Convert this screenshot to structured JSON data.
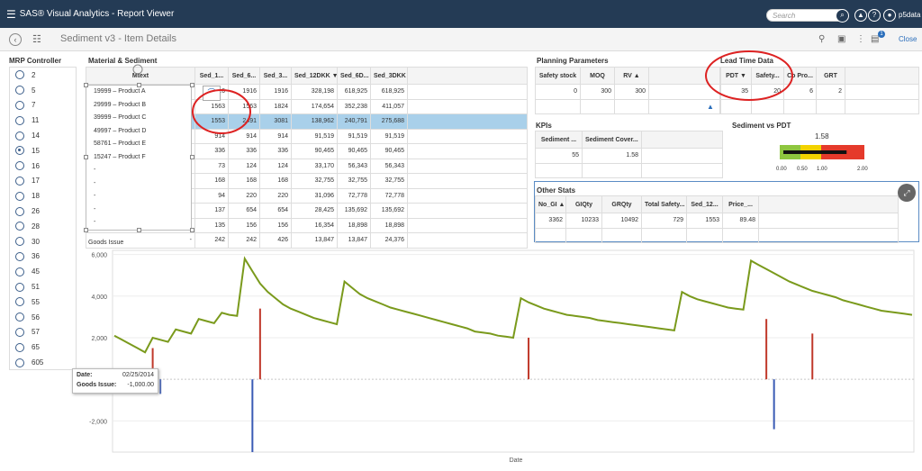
{
  "app": {
    "title": "SAS® Visual Analytics - Report Viewer",
    "search_placeholder": "Search",
    "user": "p5data"
  },
  "header": {
    "page_title": "Sediment v3 - Item Details",
    "close_label": "Close",
    "notif_count": "1"
  },
  "mrp": {
    "title": "MRP Controller",
    "items": [
      "2",
      "5",
      "7",
      "11",
      "14",
      "15",
      "16",
      "17",
      "18",
      "26",
      "28",
      "30",
      "36",
      "45",
      "51",
      "55",
      "56",
      "57",
      "65",
      "605"
    ],
    "selected": "15"
  },
  "material": {
    "title": "Material & Sediment",
    "columns": [
      "Mtext",
      "Sed_1...",
      "Sed_6...",
      "Sed_3...",
      "Sed_12DKK ▼",
      "Sed_6D...",
      "Sed_3DKK"
    ],
    "rows": [
      [
        "19999 – Product A",
        "1916",
        "1916",
        "1916",
        "328,198",
        "618,925",
        "618,925"
      ],
      [
        "29999 – Product B",
        "1563",
        "1563",
        "1824",
        "174,654",
        "352,238",
        "411,057"
      ],
      [
        "39999 – Product C",
        "1553",
        "2491",
        "3081",
        "138,962",
        "240,791",
        "275,688"
      ],
      [
        "49997 – Product D",
        "914",
        "914",
        "914",
        "91,519",
        "91,519",
        "91,519"
      ],
      [
        "58761 – Product E",
        "336",
        "336",
        "336",
        "90,465",
        "90,465",
        "90,465"
      ],
      [
        "15247 – Product F",
        "73",
        "124",
        "124",
        "33,170",
        "56,343",
        "56,343"
      ],
      [
        "-",
        "168",
        "168",
        "168",
        "32,755",
        "32,755",
        "32,755"
      ],
      [
        "-",
        "94",
        "220",
        "220",
        "31,096",
        "72,778",
        "72,778"
      ],
      [
        "-",
        "137",
        "654",
        "654",
        "28,425",
        "135,692",
        "135,692"
      ],
      [
        "-",
        "135",
        "156",
        "156",
        "16,354",
        "18,898",
        "18,898"
      ],
      [
        "-",
        "242",
        "242",
        "426",
        "13,847",
        "13,847",
        "24,376"
      ]
    ],
    "mtext_list": [
      "19999 – Product A",
      "29999 – Product B",
      "39999 – Product C",
      "49997 – Product D",
      "58761 – Product E",
      "15247 – Product F",
      "-",
      "-",
      "-",
      "-",
      "-"
    ]
  },
  "planning": {
    "title": "Planning Parameters",
    "columns": [
      "Safety stock",
      "MOQ",
      "RV ▲"
    ],
    "values": [
      "0",
      "300",
      "300"
    ]
  },
  "leadtime": {
    "title": "Lead Time Data",
    "columns": [
      "PDT ▼",
      "Safety...",
      "Co Pro...",
      "GRT"
    ],
    "values": [
      "35",
      "20",
      "6",
      "2"
    ]
  },
  "kpis": {
    "title": "KPIs",
    "columns": [
      "Sediment ...",
      "Sediment Cover... ▲"
    ],
    "values": [
      "55",
      "1.58"
    ]
  },
  "gauge": {
    "title": "Sediment vs PDT",
    "value": "1.58",
    "ticks": [
      "0.00",
      "0.50",
      "1.00",
      "2.00"
    ],
    "value_num": 1.58,
    "max": 2.0
  },
  "other": {
    "title": "Other Stats",
    "columns": [
      "No_GI ▲",
      "GIQty",
      "GRQty",
      "Total Safety...",
      "Sed_12...",
      "Price_..."
    ],
    "values": [
      "3362",
      "10233",
      "10492",
      "729",
      "1553",
      "89.48"
    ]
  },
  "chart": {
    "title": "Goods Issue",
    "xlabel": "Date",
    "yticks": [
      "6,000",
      "4,000",
      "2,000",
      "-2,000"
    ]
  },
  "tooltip": {
    "date_label": "Date:",
    "date_value": "02/25/2014",
    "gi_label": "Goods Issue:",
    "gi_value": "-1,000.00"
  },
  "chart_data": {
    "type": "line",
    "title": "Goods Issue",
    "xlabel": "Date",
    "ylim": [
      -3500,
      6200
    ],
    "yticks": [
      6000,
      4000,
      2000,
      -2000
    ],
    "series": [
      {
        "values": [
          2100,
          1900,
          1700,
          1500,
          1300,
          2000,
          1900,
          1800,
          2400,
          2300,
          2200,
          2900,
          2800,
          2700,
          3200,
          3100,
          3050,
          5800,
          5200,
          4600,
          4200,
          3900,
          3600,
          3400,
          3250,
          3100,
          2950,
          2850,
          2750,
          2650,
          4700,
          4400,
          4100,
          3900,
          3750,
          3600,
          3450,
          3350,
          3250,
          3150,
          3050,
          2950,
          2850,
          2750,
          2650,
          2550,
          2450,
          2300,
          2250,
          2200,
          2100,
          2050,
          2000,
          3900,
          3700,
          3550,
          3400,
          3300,
          3200,
          3100,
          3050,
          3000,
          2950,
          2850,
          2800,
          2750,
          2700,
          2650,
          2600,
          2550,
          2500,
          2450,
          2400,
          2350,
          4200,
          4000,
          3850,
          3750,
          3650,
          3550,
          3450,
          3400,
          3350,
          5700,
          5500,
          5300,
          5100,
          4900,
          4700,
          4550,
          4400,
          4250,
          4150,
          4050,
          3950,
          3800,
          3700,
          3600,
          3500,
          3400,
          3300,
          3250,
          3200,
          3150,
          3100
        ]
      },
      {
        "values": [
          0,
          0,
          0,
          0,
          0,
          1500,
          -700,
          0,
          0,
          0,
          0,
          0,
          0,
          0,
          0,
          0,
          0,
          0,
          -3500,
          3400,
          0,
          0,
          0,
          0,
          0,
          0,
          0,
          0,
          0,
          0,
          0,
          0,
          0,
          0,
          0,
          0,
          0,
          0,
          0,
          0,
          0,
          0,
          0,
          0,
          0,
          0,
          0,
          0,
          0,
          0,
          0,
          0,
          0,
          0,
          2000,
          0,
          0,
          0,
          0,
          0,
          0,
          0,
          0,
          0,
          0,
          0,
          0,
          0,
          0,
          0,
          0,
          0,
          0,
          0,
          0,
          0,
          0,
          0,
          0,
          0,
          0,
          0,
          0,
          0,
          0,
          2900,
          -2400,
          0,
          0,
          0,
          0,
          2200,
          0,
          0,
          0,
          0,
          0,
          0,
          0,
          0,
          0,
          0,
          0,
          0,
          0
        ]
      }
    ]
  }
}
